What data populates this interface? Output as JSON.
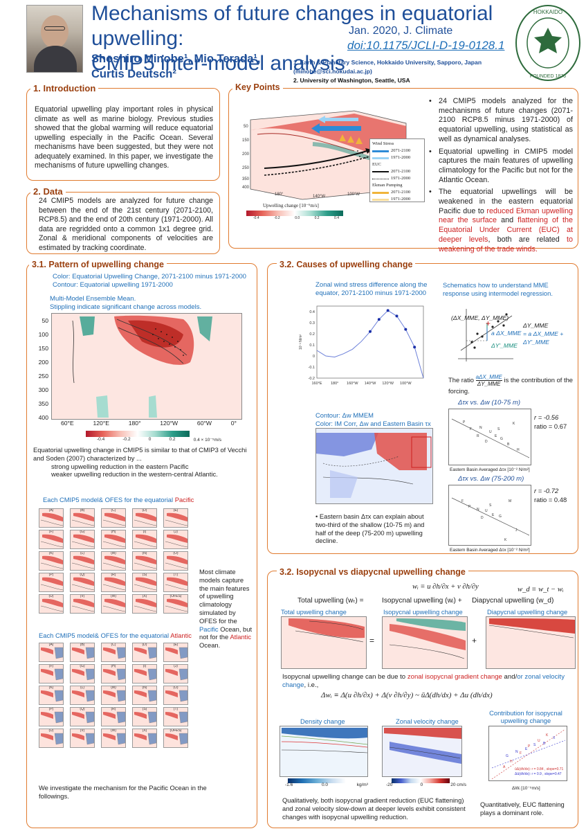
{
  "header": {
    "title_line1": "Mechanisms of future changes in equatorial upwelling:",
    "title_line2": "CMIP5 inter-model analysis",
    "journal": "Jan. 2020, J. Climate",
    "doi": "doi:10.1175/JCLI-D-19-0128.1",
    "authors_line1": "Shoshiro Minobe¹, Mio Terada¹,",
    "authors_line2": "Curtis Deutsch²",
    "affil1": "1. Earth & Planetary Science, Hokkaido University, Sapporo, Japan",
    "affil1_email": "(minobe@sci.hokudai.ac.jp)",
    "affil2": "2. University of Washington, Seattle, USA",
    "logo_text": "HOKKAIDO UNIVERSITY · FOUNDED 1876"
  },
  "intro": {
    "heading": "1. Introduction",
    "text": "Equatorial upwelling play important roles in physical climate as well as marine biology. Previous studies showed that the global warming will reduce equatorial upwelling especially in the Pacific Ocean. Several mechanisms have been suggested, but they were not adequately examined. In this paper, we investigate the mechanisms of future upwelling changes."
  },
  "data_section": {
    "heading": "2. Data",
    "text": "24 CMIP5 models are analyzed for future change between the end of the 21st century (2071-2100, RCP8.5) and the end of 20th century (1971-2000). All data are regridded onto a common 1x1 degree grid. Zonal & meridional components of velocities are estimated by tracking coordinate."
  },
  "key_points": {
    "heading": "Key Points",
    "legend": {
      "wind_stress": "Wind Stress",
      "y2071": "2071-2100",
      "y1971": "1971-2000",
      "euc": "EUC",
      "ekman": "Ekman Pumping"
    },
    "colorbar_label": "Upwelling change [10⁻⁶m/s]",
    "colorbar_ticks": [
      "-0.4",
      "-0.2",
      "0.0",
      "0.2",
      "0.4"
    ],
    "bullets": [
      "24 CMIP5 models analyzed for the mechanisms of future changes (2071-2100 RCP8.5 minus 1971-2000) of equatorial upwelling, using statistical as well as dynamical analyses.",
      "Equatorial upwelling in CMIP5 model captures the main features of upwelling climatology for the Pacific but not for the Atlantic Ocean."
    ],
    "bullet3_a": "The equatorial upwellings will be weakened in the eastern equatorial Pacific due to ",
    "bullet3_b": "reduced Ekman upwelling near the surface",
    "bullet3_c": " and ",
    "bullet3_d": "flattening of the Equatorial Under Current (EUC) at deeper levels",
    "bullet3_e": ", both are related ",
    "bullet3_f": "to weakening of the trade winds."
  },
  "pattern": {
    "heading": "3.1. Pattern of upwelling change",
    "color_line": "Color:     Equatorial Upwelling Change, 2071-2100 minus 1971-2000",
    "contour_line": "Contour: Equatorial upwelling 1971-2000",
    "mme_line1": "Multi-Model Ensemble Mean.",
    "mme_line2": "Stippling indicate significant change across models.",
    "y_ticks": [
      "50",
      "100",
      "150",
      "200",
      "250",
      "300",
      "350",
      "400"
    ],
    "x_ticks": [
      "60°E",
      "120°E",
      "180°",
      "120°W",
      "60°W",
      "0°"
    ],
    "cb_ticks": [
      "-0.4",
      "-0.2",
      "0",
      "0.2",
      "0.4 × 10⁻⁵m/s"
    ],
    "desc1": "Equatorial upwelling change in CMIP5 is similar to that of CMIP3 of Vecchi and Soden (2007) characterized by ...",
    "desc2": "strong upwelling reduction in the eastern Pacific",
    "desc3": "weaker upwelling reduction in the western-central Atlantic.",
    "pacific_title_a": "Each CMIP5 model& OFES for the  equatorial ",
    "pacific_title_b": "Pacific",
    "atlantic_title_a": "Each CMIP5 model& OFES for the  equatorial ",
    "atlantic_title_b": "Atlantic",
    "models_text_a": "Most climate models capture the main features of upwelling climatology simulated by OFES for the ",
    "models_text_b": "Pacific",
    "models_text_c": " Ocean, but not for the ",
    "models_text_d": "Atlantic",
    "models_text_e": " Ocean.",
    "panel_labels": [
      "(A)",
      "(B)",
      "(C)",
      "(D)",
      "(E)",
      "(F)",
      "(G)",
      "(H)",
      "(I)",
      "(J)",
      "(K)",
      "(L)",
      "(M)",
      "(N)",
      "(O)",
      "(P)",
      "(Q)",
      "(R)",
      "(S)",
      "(T)",
      "(U)",
      "(V)",
      "(W)",
      "(X)",
      "(OFES)"
    ],
    "small_axis_pac": [
      "200",
      "400",
      "180°",
      "120°W"
    ],
    "small_axis_atl": [
      "200",
      "400",
      "60°W",
      "0°"
    ],
    "closing": "We investigate the mechanism for the Pacific Ocean in the followings."
  },
  "causes": {
    "heading": "3.2. Causes of upwelling change",
    "wind_title": "Zonal wind stress difference along the equator, 2071-2100 minus 1971-2000",
    "wind_ylabel": "10⁻² N/m²",
    "wind_yticks": [
      "0.4",
      "0.3",
      "0.2",
      "0.1",
      "0",
      "-0.1",
      "-0.2"
    ],
    "wind_xticks": [
      "160°E",
      "180°",
      "160°W",
      "140°W",
      "120°W",
      "100°W"
    ],
    "mme_title": "Schematics how to understand MME response using intermodel regression.",
    "mme_point": "(ΔX_MME, ΔY_MME)",
    "mme_eq1": "ΔY_MME",
    "mme_eq2": "= a ΔX_MME + ΔY'_MME",
    "mme_a": "a ΔX_MME",
    "mme_dy": "ΔY'_MME",
    "ratio_text_a": "The ratio ",
    "ratio_num": "aΔX_MME",
    "ratio_den": "ΔY_MME",
    "ratio_text_b": " is the contribution of the forcing.",
    "contour_title1": "Contour: Δw MMEM",
    "contour_title2": "Color: IM Corr, Δw and Eastern Basin τx",
    "scatter1_title": "Δτx vs. Δw (10-75 m)",
    "scatter1_r": "r = -0.56",
    "scatter1_ratio": "ratio = 0.67",
    "scatter1_ylabel": "10-75 m ave Δw [10⁻⁵ m/s]",
    "scatter2_title": "Δτx vs. Δw (75-200 m)",
    "scatter2_r": "r = -0.72",
    "scatter2_ratio": "ratio = 0.48",
    "scatter2_ylabel": "75-200 m ave Δw [10⁻⁵ m/s]",
    "scatter_xlabel": "Eastern Basin Averaged Δτx [10⁻² N/m²]",
    "eastern_text": "Eastern basin Δτx can explain about two-third of the shallow (10-75 m) and half of the deep (75-200 m) upwelling decline."
  },
  "isopycnal": {
    "heading": "3.2. Isopycnal vs diapycnal upwelling change",
    "eq_wi": "wᵢ ≡ u ∂h/∂x + v ∂h/∂y",
    "eq_wd": "w_d ≡ w_t − wᵢ",
    "total_label": "Total upwelling (wₜ)  =",
    "iso_label": "Isopycnal upwelling (wᵢ)  +",
    "dia_label": "Diapycnal upwelling (w_d)",
    "panel_total": "Total upwelling change",
    "panel_iso": "Isopycnal upwelling change",
    "panel_dia": "Diapycnal upwelling change",
    "explain_a": "Isopycnal upwelling change can be due to ",
    "explain_b": "zonal isopycnal gradient change",
    "explain_c": " and/",
    "explain_d": "or zonal velocity change",
    "explain_e": ", i.e.,",
    "eq_delta": "Δwᵢ ≡ Δ(u ∂h/∂x) + Δ(v ∂h/∂y) ~ ūΔ(dh/dx) + Δu (dh/dx)",
    "density_title": "Density change",
    "velocity_title": "Zonal velocity change",
    "contrib_title": "Contribution for isopycnal upwelling change",
    "density_cb": [
      "-1.6",
      "0.0",
      "kg/m³"
    ],
    "velocity_cb": [
      "-20",
      "0",
      "20 cm/s"
    ],
    "contrib_xlabel": "ΔWᵢ [10⁻⁵m/s]",
    "contrib_ylabel": "Contributions [10⁻⁵m/s]",
    "contrib_legend1": "ūΔ(dh/dx): r = 0.84 , slope=0.71",
    "contrib_legend2": "Δū(dh/dx): r = 0.9 , slope=0.47",
    "qual_text": "Qualitatively, both isopycnal gradient reduction (EUC flattening) and zonal velocity slow-down at deeper levels exhibit consistent changes with isopycnal upwelling reduction.",
    "quant_text": "Quantitatively, EUC flattening plays a dominant role."
  },
  "chart_data": {
    "type": "line",
    "title": "Zonal wind stress difference along the equator, 2071-2100 minus 1971-2000",
    "xlabel": "",
    "ylabel": "10⁻² N/m²",
    "x": [
      "160°E",
      "170°E",
      "180°",
      "170°W",
      "160°W",
      "150°W",
      "140°W",
      "130°W",
      "120°W",
      "110°W",
      "100°W",
      "90°W",
      "80°W"
    ],
    "series": [
      {
        "values": [
          0.05,
          0.0,
          -0.01,
          0.02,
          0.06,
          0.13,
          0.22,
          0.33,
          0.41,
          0.36,
          0.24,
          0.08,
          -0.2
        ]
      }
    ],
    "ylim": [
      -0.2,
      0.45
    ],
    "grid": false
  },
  "colors": {
    "accent_orange": "#e07a2e",
    "heading_brown": "#9a3f0e",
    "title_blue": "#1f4f99",
    "link_blue": "#1f6fb8",
    "emphasis_red": "#cc1f1f",
    "upwelling_red": "#d9423a",
    "upwelling_teal": "#1a8f7f"
  }
}
